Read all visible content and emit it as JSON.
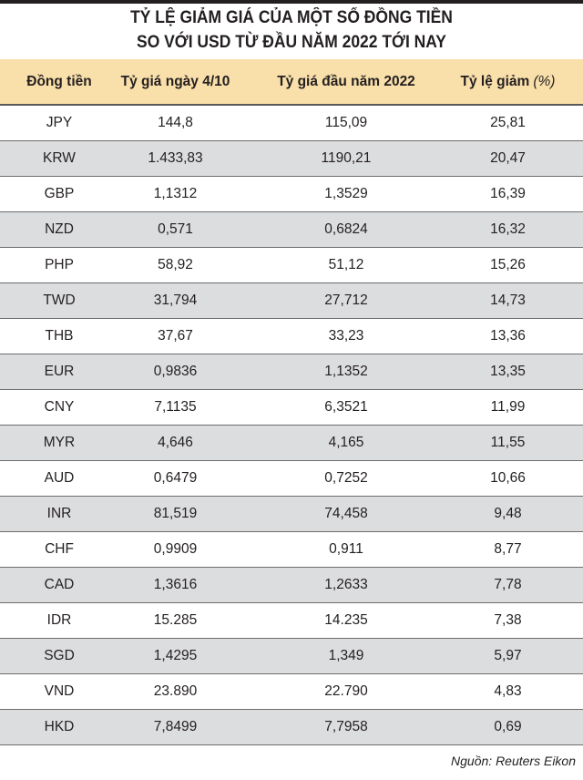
{
  "title_line1": "TỶ LỆ GIẢM GIÁ CỦA MỘT SỐ ĐỒNG TIỀN",
  "title_line2": "SO VỚI USD TỪ ĐẦU NĂM 2022 TỚI NAY",
  "colors": {
    "header_bg": "#f9dfa9",
    "alt_row_bg": "#dcdddf"
  },
  "chart_data": {
    "type": "table",
    "title": "TỶ LỆ GIẢM GIÁ CỦA MỘT SỐ ĐỒNG TIỀN SO VỚI USD TỪ ĐẦU NĂM 2022 TỚI NAY",
    "columns": [
      "Đồng tiền",
      "Tỷ giá ngày 4/10",
      "Tỷ giá đầu năm 2022",
      "Tỷ lệ giảm"
    ],
    "last_column_unit": "(%)",
    "rows": [
      [
        "JPY",
        "144,8",
        "115,09",
        "25,81"
      ],
      [
        "KRW",
        "1.433,83",
        "1190,21",
        "20,47"
      ],
      [
        "GBP",
        "1,1312",
        "1,3529",
        "16,39"
      ],
      [
        "NZD",
        "0,571",
        "0,6824",
        "16,32"
      ],
      [
        "PHP",
        "58,92",
        "51,12",
        "15,26"
      ],
      [
        "TWD",
        "31,794",
        "27,712",
        "14,73"
      ],
      [
        "THB",
        "37,67",
        "33,23",
        "13,36"
      ],
      [
        "EUR",
        "0,9836",
        "1,1352",
        "13,35"
      ],
      [
        "CNY",
        "7,1135",
        "6,3521",
        "11,99"
      ],
      [
        "MYR",
        "4,646",
        "4,165",
        "11,55"
      ],
      [
        "AUD",
        "0,6479",
        "0,7252",
        "10,66"
      ],
      [
        "INR",
        "81,519",
        "74,458",
        "9,48"
      ],
      [
        "CHF",
        "0,9909",
        "0,911",
        "8,77"
      ],
      [
        "CAD",
        "1,3616",
        "1,2633",
        "7,78"
      ],
      [
        "IDR",
        "15.285",
        "14.235",
        "7,38"
      ],
      [
        "SGD",
        "1,4295",
        "1,349",
        "5,97"
      ],
      [
        "VND",
        "23.890",
        "22.790",
        "4,83"
      ],
      [
        "HKD",
        "7,8499",
        "7,7958",
        "0,69"
      ]
    ]
  },
  "source": "Nguồn: Reuters Eikon"
}
